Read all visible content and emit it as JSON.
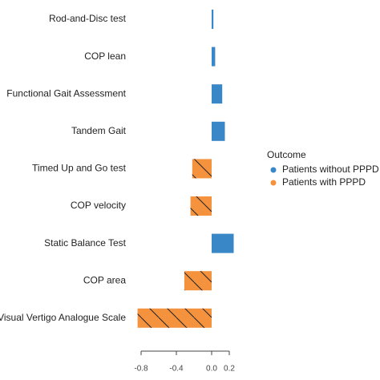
{
  "chart_data": {
    "type": "bar",
    "orientation": "horizontal",
    "categories": [
      "Rod-and-Disc test",
      "COP lean",
      "Functional Gait Assessment",
      "Tandem Gait",
      "Timed Up and Go test",
      "COP velocity",
      "Static Balance Test",
      "COP area",
      "Visual Vertigo Analogue Scale"
    ],
    "series": [
      {
        "name": "Patients without PPPD",
        "color": "#3a87c8",
        "values": [
          0.02,
          0.04,
          0.12,
          0.15,
          null,
          null,
          0.25,
          null,
          null
        ]
      },
      {
        "name": "Patients with PPPD",
        "color": "#f5923e",
        "hatch": true,
        "values": [
          null,
          null,
          null,
          null,
          -0.22,
          -0.24,
          null,
          -0.31,
          -0.84
        ]
      }
    ],
    "legend_title": "Outcome",
    "xlim": [
      -0.9,
      0.3
    ],
    "xticks": [
      -0.8,
      -0.4,
      {
        "value": 0,
        "label": "0.0"
      },
      0.2
    ]
  }
}
